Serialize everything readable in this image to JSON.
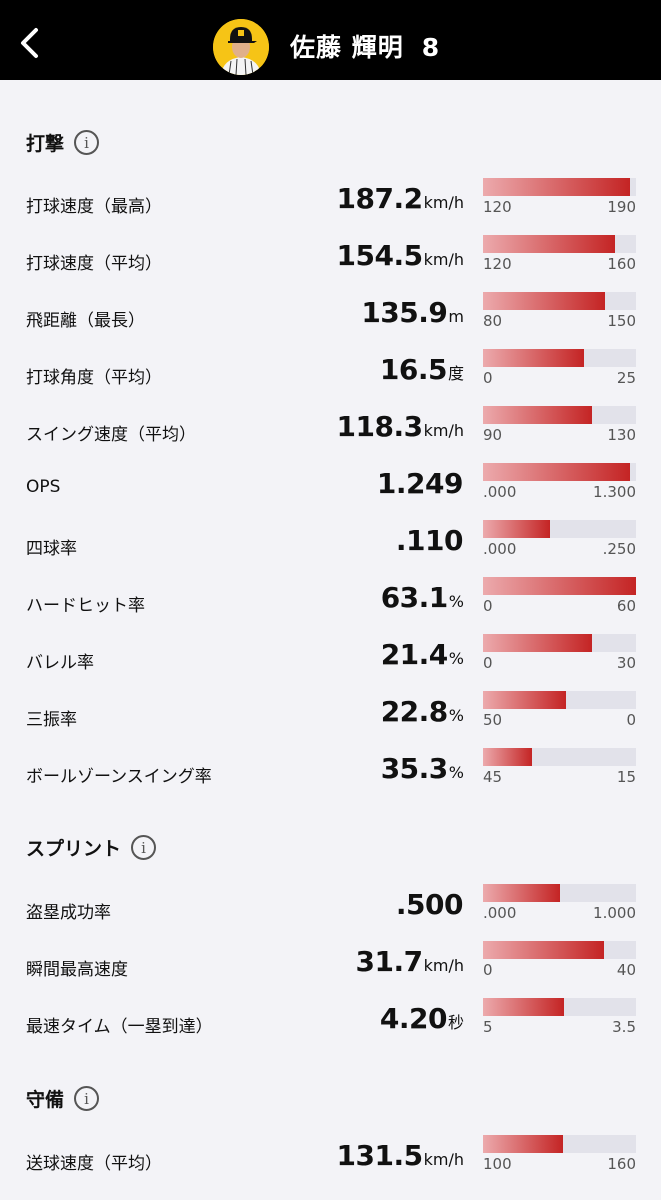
{
  "header": {
    "player_name": "佐藤 輝明",
    "number": "8"
  },
  "sections": [
    {
      "title": "打撃",
      "rows": [
        {
          "label": "打球速度（最高）",
          "value": "187.2",
          "unit": "km/h",
          "min": "120",
          "max": "190",
          "fill": 0.96
        },
        {
          "label": "打球速度（平均）",
          "value": "154.5",
          "unit": "km/h",
          "min": "120",
          "max": "160",
          "fill": 0.86
        },
        {
          "label": "飛距離（最長）",
          "value": "135.9",
          "unit": "m",
          "min": "80",
          "max": "150",
          "fill": 0.8
        },
        {
          "label": "打球角度（平均）",
          "value": "16.5",
          "unit": "度",
          "min": "0",
          "max": "25",
          "fill": 0.66
        },
        {
          "label": "スイング速度（平均）",
          "value": "118.3",
          "unit": "km/h",
          "min": "90",
          "max": "130",
          "fill": 0.71
        },
        {
          "label": "OPS",
          "value": "1.249",
          "unit": "",
          "min": ".000",
          "max": "1.300",
          "fill": 0.96
        },
        {
          "label": "四球率",
          "value": ".110",
          "unit": "",
          "min": ".000",
          "max": ".250",
          "fill": 0.44
        },
        {
          "label": "ハードヒット率",
          "value": "63.1",
          "unit": "%",
          "min": "0",
          "max": "60",
          "fill": 1.0
        },
        {
          "label": "バレル率",
          "value": "21.4",
          "unit": "%",
          "min": "0",
          "max": "30",
          "fill": 0.71
        },
        {
          "label": "三振率",
          "value": "22.8",
          "unit": "%",
          "min": "50",
          "max": "0",
          "fill": 0.54
        },
        {
          "label": "ボールゾーンスイング率",
          "value": "35.3",
          "unit": "%",
          "min": "45",
          "max": "15",
          "fill": 0.32
        }
      ]
    },
    {
      "title": "スプリント",
      "rows": [
        {
          "label": "盗塁成功率",
          "value": ".500",
          "unit": "",
          "min": ".000",
          "max": "1.000",
          "fill": 0.5
        },
        {
          "label": "瞬間最高速度",
          "value": "31.7",
          "unit": "km/h",
          "min": "0",
          "max": "40",
          "fill": 0.79
        },
        {
          "label": "最速タイム（一塁到達）",
          "value": "4.20",
          "unit": "秒",
          "min": "5",
          "max": "3.5",
          "fill": 0.53
        }
      ]
    },
    {
      "title": "守備",
      "rows": [
        {
          "label": "送球速度（平均）",
          "value": "131.5",
          "unit": "km/h",
          "min": "100",
          "max": "160",
          "fill": 0.52
        }
      ]
    }
  ]
}
